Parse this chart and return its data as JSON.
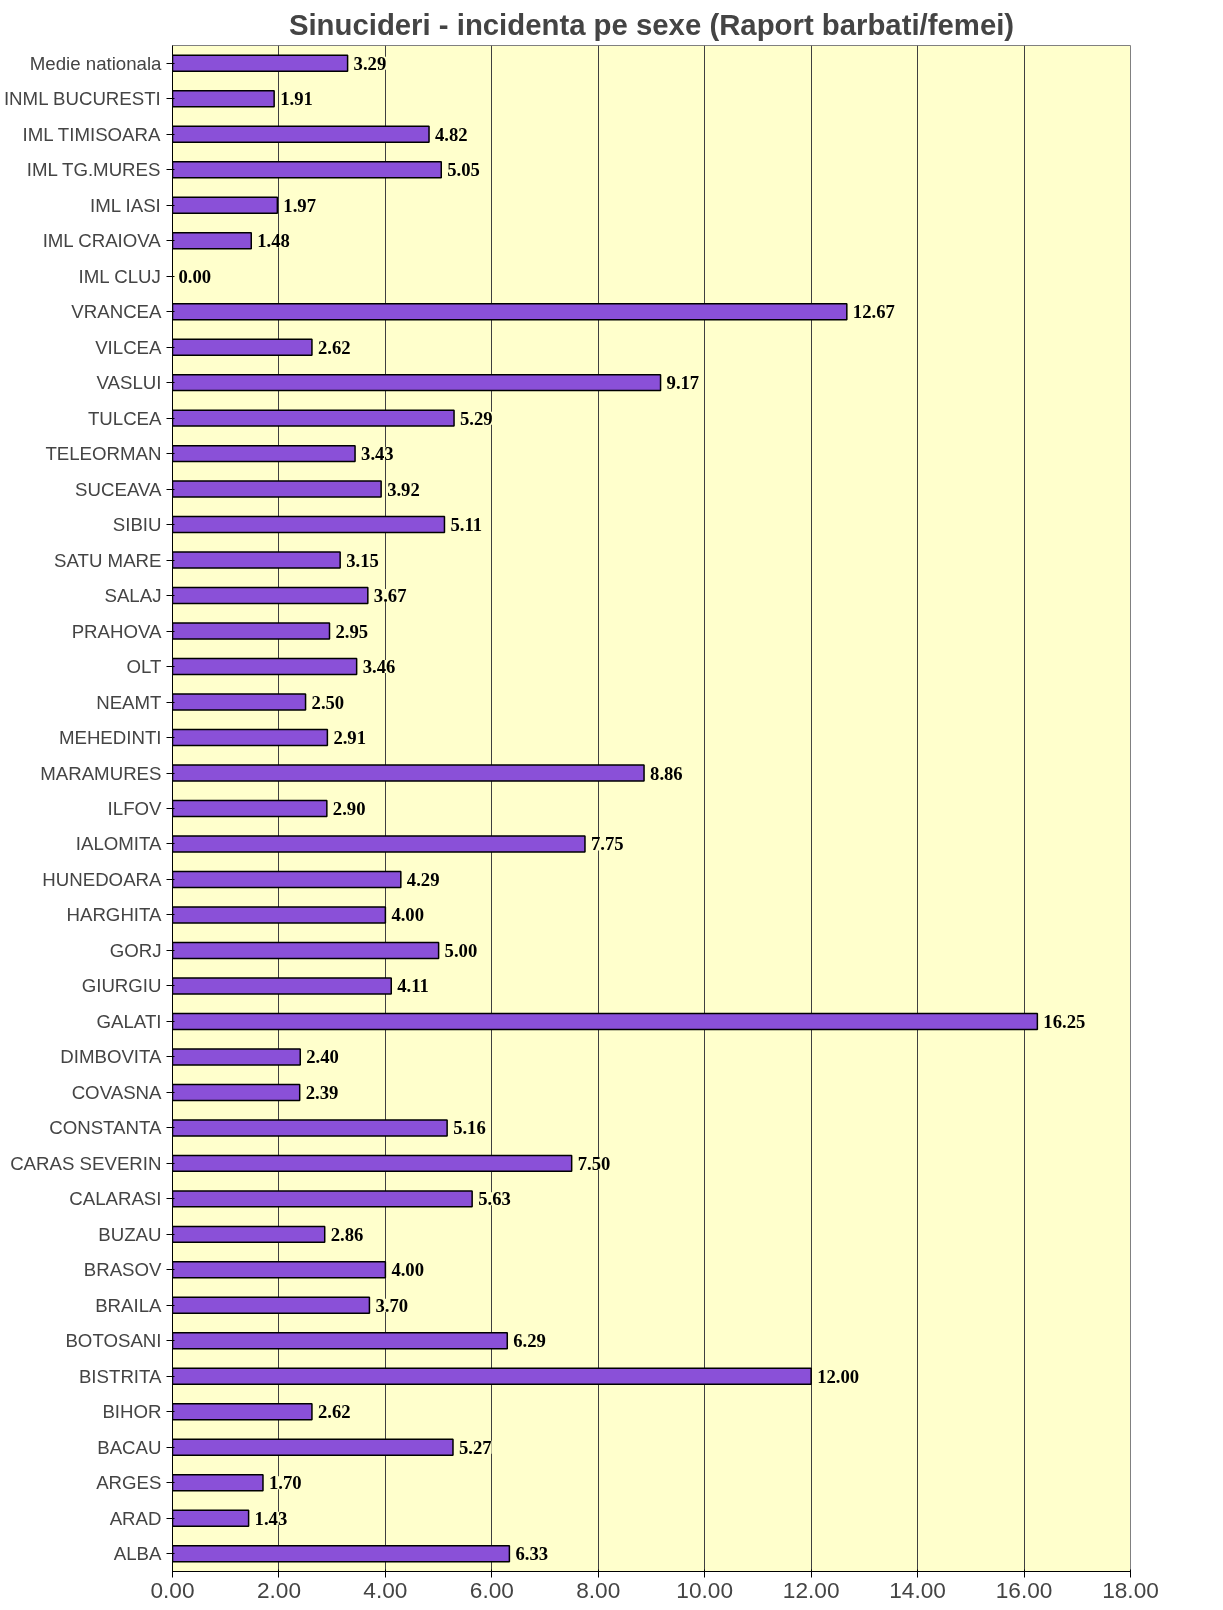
{
  "chart_data": {
    "type": "bar",
    "orientation": "horizontal",
    "title": "Sinucideri - incidenta pe sexe (Raport barbati/femei)",
    "categories": [
      "Medie nationala",
      "INML BUCURESTI",
      "IML TIMISOARA",
      "IML TG.MURES",
      "IML IASI",
      "IML CRAIOVA",
      "IML CLUJ",
      "VRANCEA",
      "VILCEA",
      "VASLUI",
      "TULCEA",
      "TELEORMAN",
      "SUCEAVA",
      "SIBIU",
      "SATU MARE",
      "SALAJ",
      "PRAHOVA",
      "OLT",
      "NEAMT",
      "MEHEDINTI",
      "MARAMURES",
      "ILFOV",
      "IALOMITA",
      "HUNEDOARA",
      "HARGHITA",
      "GORJ",
      "GIURGIU",
      "GALATI",
      "DIMBOVITA",
      "COVASNA",
      "CONSTANTA",
      "CARAS SEVERIN",
      "CALARASI",
      "BUZAU",
      "BRASOV",
      "BRAILA",
      "BOTOSANI",
      "BISTRITA",
      "BIHOR",
      "BACAU",
      "ARGES",
      "ARAD",
      "ALBA"
    ],
    "values": [
      3.29,
      1.91,
      4.82,
      5.05,
      1.97,
      1.48,
      0.0,
      12.67,
      2.62,
      9.17,
      5.29,
      3.43,
      3.92,
      5.11,
      3.15,
      3.67,
      2.95,
      3.46,
      2.5,
      2.91,
      8.86,
      2.9,
      7.75,
      4.29,
      4.0,
      5.0,
      4.11,
      16.25,
      2.4,
      2.39,
      5.16,
      7.5,
      5.63,
      2.86,
      4.0,
      3.7,
      6.29,
      12.0,
      2.62,
      5.27,
      1.7,
      1.43,
      6.33
    ],
    "value_labels": [
      "3.29",
      "1.91",
      "4.82",
      "5.05",
      "1.97",
      "1.48",
      "0.00",
      "12.67",
      "2.62",
      "9.17",
      "5.29",
      "3.43",
      "3.92",
      "5.11",
      "3.15",
      "3.67",
      "2.95",
      "3.46",
      "2.50",
      "2.91",
      "8.86",
      "2.90",
      "7.75",
      "4.29",
      "4.00",
      "5.00",
      "4.11",
      "16.25",
      "2.40",
      "2.39",
      "5.16",
      "7.50",
      "5.63",
      "2.86",
      "4.00",
      "3.70",
      "6.29",
      "12.00",
      "2.62",
      "5.27",
      "1.70",
      "1.43",
      "6.33"
    ],
    "color": "#8a50d8",
    "xlim": [
      0,
      18
    ],
    "xticks": [
      {
        "value": 0,
        "label": "0.00"
      },
      {
        "value": 2,
        "label": "2.00"
      },
      {
        "value": 4,
        "label": "4.00"
      },
      {
        "value": 6,
        "label": "6.00"
      },
      {
        "value": 8,
        "label": "8.00"
      },
      {
        "value": 10,
        "label": "10.00"
      },
      {
        "value": 12,
        "label": "12.00"
      },
      {
        "value": 14,
        "label": "14.00"
      },
      {
        "value": 16,
        "label": "16.00"
      },
      {
        "value": 18,
        "label": "18.00"
      }
    ],
    "grid": "x"
  }
}
